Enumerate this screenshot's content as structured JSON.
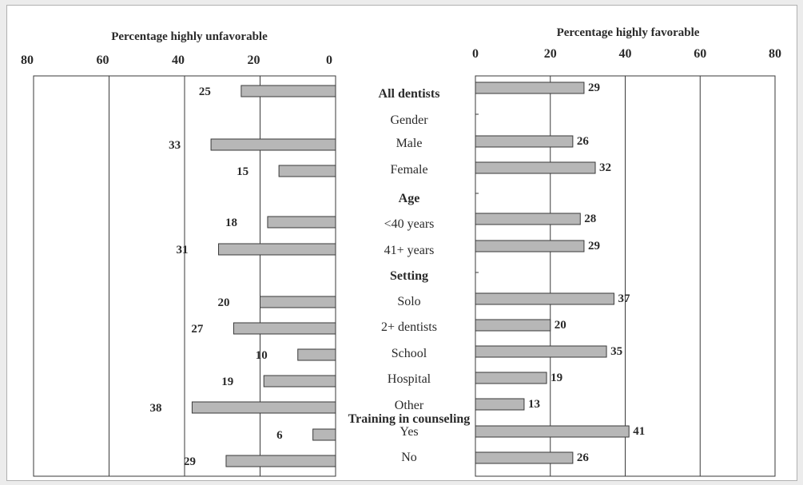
{
  "chart_data": [
    {
      "type": "bar",
      "orientation": "horizontal",
      "direction": "right-to-left",
      "xlabel": "Percentage highly unfavorable",
      "xlim": [
        0,
        80
      ],
      "xticks": [
        "80",
        "60",
        "40",
        "20",
        "0"
      ],
      "grid": true,
      "categories": [
        "All dentists",
        "Male",
        "Female",
        "<40 years",
        "41+ years",
        "Solo",
        "2+ dentists",
        "School",
        "Hospital",
        "Other",
        "Yes",
        "No"
      ],
      "values": [
        25,
        33,
        15,
        18,
        31,
        20,
        27,
        10,
        19,
        38,
        6,
        29
      ]
    },
    {
      "type": "bar",
      "orientation": "horizontal",
      "direction": "left-to-right",
      "xlabel": "Percentage highly favorable",
      "xlim": [
        0,
        80
      ],
      "xticks": [
        "0",
        "20",
        "40",
        "60",
        "80"
      ],
      "grid": true,
      "categories": [
        "All dentists",
        "Male",
        "Female",
        "<40 years",
        "41+ years",
        "Solo",
        "2+ dentists",
        "School",
        "Hospital",
        "Other",
        "Yes",
        "No"
      ],
      "values": [
        29,
        26,
        32,
        28,
        29,
        37,
        20,
        35,
        19,
        13,
        41,
        26
      ]
    }
  ],
  "center_labels": [
    {
      "text": "All dentists",
      "bold": true
    },
    {
      "text": "Gender",
      "bold": false
    },
    {
      "text": "Male",
      "bold": false
    },
    {
      "text": "Female",
      "bold": false
    },
    {
      "text": "Age",
      "bold": true
    },
    {
      "text": "<40 years",
      "bold": false
    },
    {
      "text": "41+ years",
      "bold": false
    },
    {
      "text": "Setting",
      "bold": true
    },
    {
      "text": "Solo",
      "bold": false
    },
    {
      "text": "2+ dentists",
      "bold": false
    },
    {
      "text": "School",
      "bold": false
    },
    {
      "text": "Hospital",
      "bold": false
    },
    {
      "text": "Other",
      "bold": false
    },
    {
      "text": "Training in counseling",
      "bold": true
    },
    {
      "text": "Yes",
      "bold": false
    },
    {
      "text": "No",
      "bold": false
    }
  ],
  "colors": {
    "bar_fill": "#b7b7b7",
    "bar_stroke": "#3a3a3a",
    "axis": "#3a3a3a",
    "text": "#2a2a2a"
  }
}
